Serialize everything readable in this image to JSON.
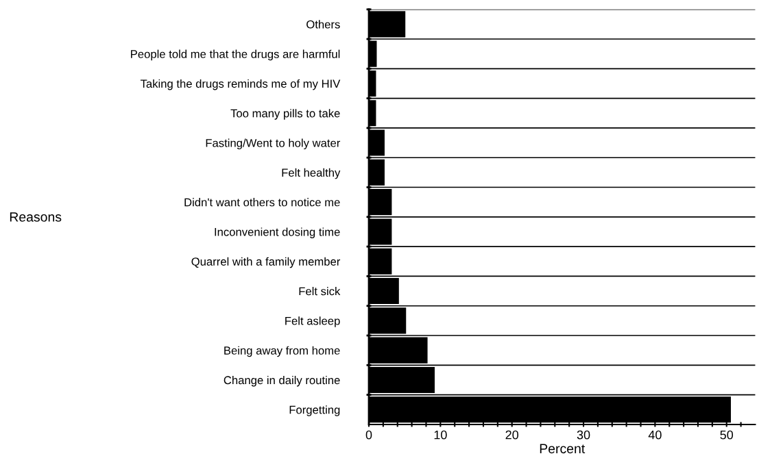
{
  "chart_data": {
    "type": "bar",
    "orientation": "horizontal",
    "xlabel": "Percent",
    "annotations": [
      "Reasons"
    ],
    "categories": [
      "Others",
      "People told me that the drugs are harmful",
      "Taking the drugs reminds me of my HIV",
      "Too many pills to take",
      "Fasting/Went to holy water",
      "Felt healthy",
      "Didn't want others to notice me",
      "Inconvenient dosing time",
      "Quarrel with a family member",
      "Felt sick",
      "Felt asleep",
      "Being away from home",
      "Change in daily routine",
      "Forgetting"
    ],
    "values": [
      5.1,
      1.1,
      1.0,
      1.0,
      2.2,
      2.2,
      3.2,
      3.2,
      3.2,
      4.2,
      5.2,
      8.2,
      9.2,
      50.6
    ],
    "color": "#000000",
    "xlim": [
      0,
      54
    ],
    "xticks": [
      0,
      {
        "value": 2,
        "label": null
      },
      {
        "value": 4,
        "label": null
      },
      {
        "value": 6,
        "label": null
      },
      {
        "value": 8,
        "label": null
      },
      10,
      {
        "value": 12,
        "label": null
      },
      {
        "value": 14,
        "label": null
      },
      {
        "value": 16,
        "label": null
      },
      {
        "value": 18,
        "label": null
      },
      20,
      {
        "value": 22,
        "label": null
      },
      {
        "value": 24,
        "label": null
      },
      {
        "value": 26,
        "label": null
      },
      {
        "value": 28,
        "label": null
      },
      30,
      {
        "value": 32,
        "label": null
      },
      {
        "value": 34,
        "label": null
      },
      {
        "value": 36,
        "label": null
      },
      {
        "value": 38,
        "label": null
      },
      40,
      {
        "value": 42,
        "label": null
      },
      {
        "value": 44,
        "label": null
      },
      {
        "value": 46,
        "label": null
      },
      {
        "value": 48,
        "label": null
      },
      50,
      {
        "value": 52,
        "label": null
      }
    ],
    "grid": "y"
  }
}
